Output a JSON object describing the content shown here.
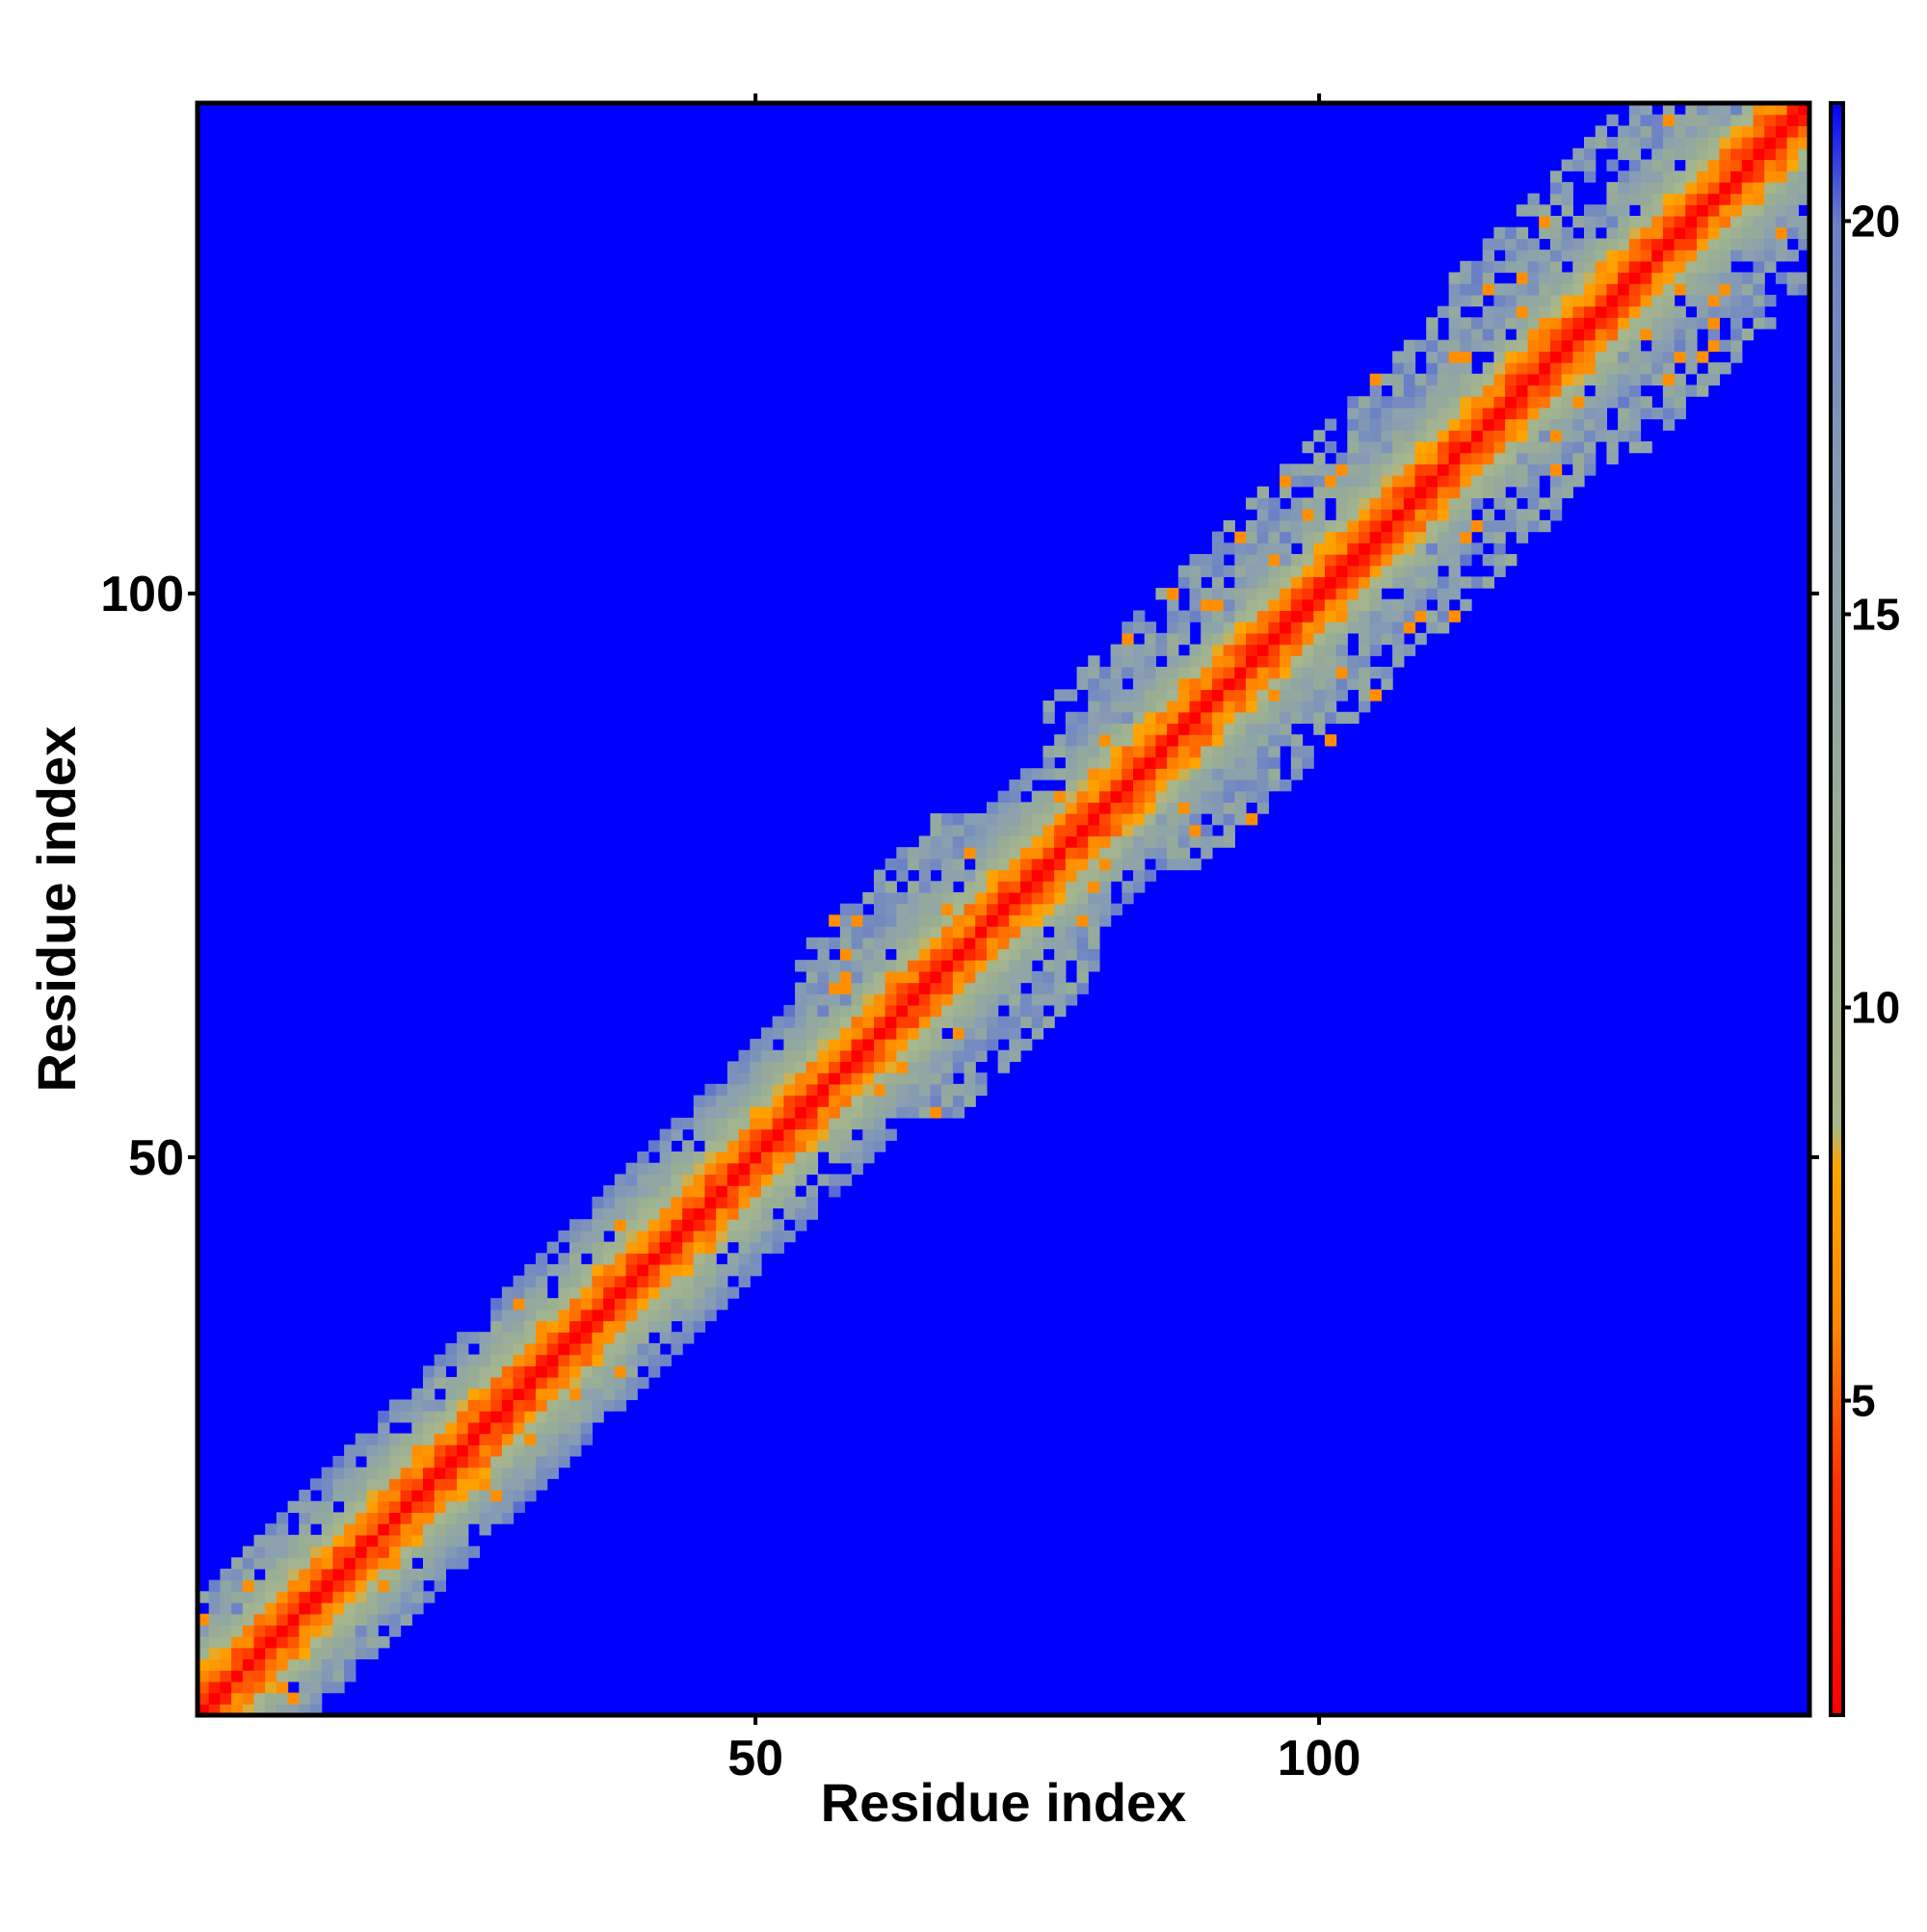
{
  "chart_data": {
    "type": "heatmap",
    "title": "",
    "xlabel": "Residue index",
    "ylabel": "Residue index",
    "n_residues": 143,
    "xlim": [
      0.5,
      143.5
    ],
    "ylim": [
      0.5,
      143.5
    ],
    "x_ticks": [
      50,
      100
    ],
    "y_ticks": [
      50,
      100
    ],
    "value_unit": "",
    "colorbar": {
      "range": [
        1,
        21.5
      ],
      "ticks": [
        5,
        10,
        15,
        20
      ],
      "stops": [
        {
          "value": 1,
          "color": "#ff0000"
        },
        {
          "value": 4,
          "color": "#ff3300"
        },
        {
          "value": 6,
          "color": "#ff8800"
        },
        {
          "value": 8,
          "color": "#ffa500"
        },
        {
          "value": 8.5,
          "color": "#a8b88c"
        },
        {
          "value": 12,
          "color": "#9aae94"
        },
        {
          "value": 16,
          "color": "#8aa0b0"
        },
        {
          "value": 20,
          "color": "#6a7fc8"
        },
        {
          "value": 21.5,
          "color": "#0000ff"
        }
      ]
    },
    "background_color": "#0000ff",
    "band_profile": {
      "description_values": "approximate distance value vs |i-j| along the diagonal",
      "offset": [
        0,
        1,
        2,
        3,
        4,
        5,
        6,
        8,
        10
      ],
      "value": [
        1,
        3.8,
        5.5,
        6.5,
        9,
        11,
        13,
        16,
        19
      ]
    },
    "domains": [
      {
        "start": 1,
        "end": 20,
        "extent": 10
      },
      {
        "start": 20,
        "end": 48,
        "extent": 8
      },
      {
        "start": 48,
        "end": 58,
        "extent": 6
      },
      {
        "start": 54,
        "end": 80,
        "extent": 14
      },
      {
        "start": 76,
        "end": 106,
        "extent": 14
      },
      {
        "start": 94,
        "end": 126,
        "extent": 14
      },
      {
        "start": 112,
        "end": 143,
        "extent": 16
      }
    ]
  }
}
